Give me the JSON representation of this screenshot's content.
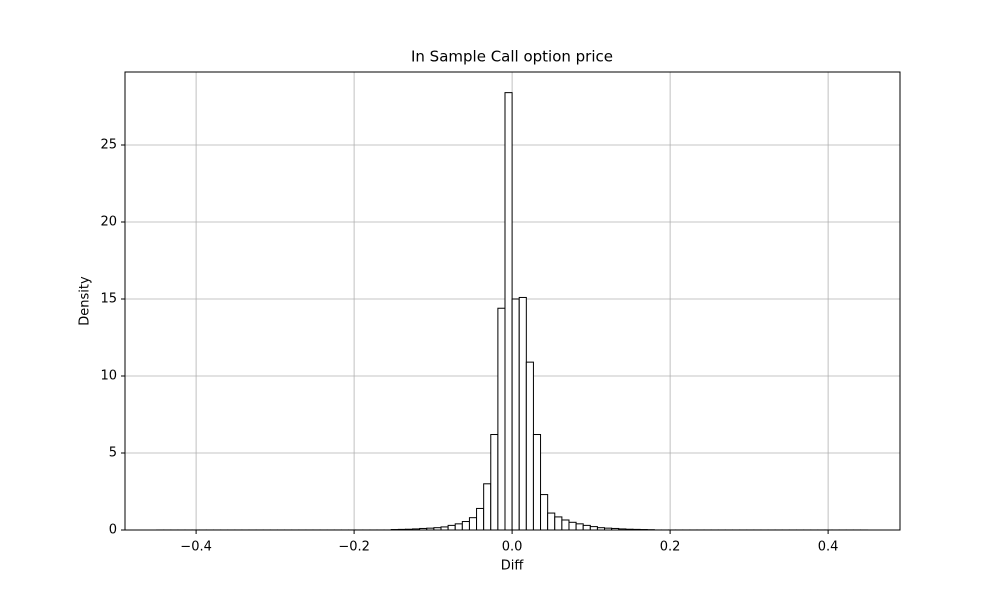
{
  "chart_data": {
    "type": "histogram",
    "title": "In Sample Call option price",
    "x_label": "Diff",
    "y_label": "Density",
    "bins": [
      -0.45,
      -0.441,
      -0.432,
      -0.423,
      -0.414,
      -0.405,
      -0.396,
      -0.387,
      -0.378,
      -0.369,
      -0.36,
      -0.351,
      -0.342,
      -0.333,
      -0.324,
      -0.315,
      -0.306,
      -0.297,
      -0.288,
      -0.279,
      -0.27,
      -0.261,
      -0.252,
      -0.243,
      -0.234,
      -0.225,
      -0.216,
      -0.207,
      -0.198,
      -0.189,
      -0.18,
      -0.171,
      -0.162,
      -0.153,
      -0.144,
      -0.135,
      -0.126,
      -0.117,
      -0.108,
      -0.099,
      -0.09,
      -0.081,
      -0.072,
      -0.063,
      -0.054,
      -0.045,
      -0.036,
      -0.027,
      -0.018,
      -0.009,
      0,
      0.009,
      0.018,
      0.027,
      0.036,
      0.045,
      0.054,
      0.063,
      0.072,
      0.081,
      0.09,
      0.099,
      0.108,
      0.117,
      0.126,
      0.135,
      0.144,
      0.153,
      0.162,
      0.171,
      0.18,
      0.189,
      0.198,
      0.207,
      0.216,
      0.225,
      0.234,
      0.243,
      0.252,
      0.261,
      0.27,
      0.279,
      0.288,
      0.297,
      0.306,
      0.315,
      0.324,
      0.333,
      0.342,
      0.351,
      0.36,
      0.369,
      0.378,
      0.387,
      0.396,
      0.405,
      0.414,
      0.423,
      0.432,
      0.441,
      0.45
    ],
    "values": [
      0.003,
      0.003,
      0.003,
      0.003,
      0.003,
      0.003,
      0.003,
      0.003,
      0.003,
      0.003,
      0.003,
      0.003,
      0.003,
      0.003,
      0.003,
      0.003,
      0.003,
      0.003,
      0.003,
      0.003,
      0.003,
      0.003,
      0.003,
      0.003,
      0.003,
      0.003,
      0.003,
      0.003,
      0.003,
      0.003,
      0.003,
      0.003,
      0.003,
      0.03,
      0.04,
      0.05,
      0.07,
      0.1,
      0.12,
      0.15,
      0.2,
      0.3,
      0.4,
      0.55,
      0.8,
      1.4,
      3.0,
      6.2,
      14.4,
      28.4,
      15.0,
      15.1,
      10.9,
      6.2,
      2.3,
      1.1,
      0.85,
      0.65,
      0.5,
      0.4,
      0.3,
      0.22,
      0.15,
      0.12,
      0.1,
      0.07,
      0.05,
      0.04,
      0.03,
      0.02,
      0.003,
      0.003,
      0.003,
      0.003,
      0.003,
      0.003,
      0.003,
      0.003,
      0.003,
      0.003,
      0.003,
      0.003,
      0.003,
      0.003,
      0.003,
      0.003,
      0.003,
      0.003,
      0.003,
      0.003,
      0.003,
      0.003,
      0.003,
      0.003,
      0.003,
      0.003,
      0.003,
      0.003,
      0.003,
      0.003
    ],
    "color": "#ffffff",
    "edgecolor": "#000000",
    "xlim": [
      -0.49,
      0.491
    ],
    "ylim": [
      0,
      29.74
    ],
    "xticks": [
      {
        "value": -0.4,
        "label": "−0.4"
      },
      {
        "value": -0.2,
        "label": "−0.2"
      },
      {
        "value": 0,
        "label": "0.0"
      },
      {
        "value": 0.2,
        "label": "0.2"
      },
      {
        "value": 0.4,
        "label": "0.4"
      }
    ],
    "yticks": [
      0,
      5,
      10,
      15,
      20,
      25
    ],
    "grid": true
  }
}
